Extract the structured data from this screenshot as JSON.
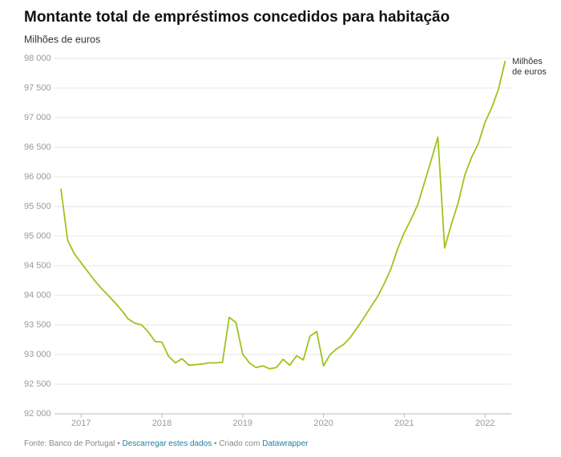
{
  "chart_data": {
    "type": "line",
    "title": "Montante total de empréstimos concedidos para habitação",
    "y_axis_label": "Milhões de euros",
    "categories": [
      null,
      null,
      null,
      "2017",
      null,
      null,
      null,
      null,
      null,
      null,
      null,
      null,
      null,
      null,
      null,
      "2018",
      null,
      null,
      null,
      null,
      null,
      null,
      null,
      null,
      null,
      null,
      null,
      "2019",
      null,
      null,
      null,
      null,
      null,
      null,
      null,
      null,
      null,
      null,
      null,
      "2020",
      null,
      null,
      null,
      null,
      null,
      null,
      null,
      null,
      null,
      null,
      null,
      "2021",
      null,
      null,
      null,
      null,
      null,
      null,
      null,
      null,
      null,
      null,
      null,
      "2022",
      null,
      null,
      null
    ],
    "series": [
      {
        "name": "Milhões de euros",
        "color": "#9dc41a",
        "values": [
          95800,
          94930,
          94700,
          94550,
          94400,
          94250,
          94120,
          94000,
          93880,
          93750,
          93600,
          93530,
          93500,
          93380,
          93220,
          93210,
          92970,
          92860,
          92930,
          92820,
          92830,
          92840,
          92860,
          92860,
          92870,
          93630,
          93540,
          93010,
          92860,
          92780,
          92810,
          92760,
          92780,
          92920,
          92820,
          92980,
          92910,
          93310,
          93390,
          92810,
          93000,
          93100,
          93170,
          93290,
          93450,
          93620,
          93800,
          93970,
          94190,
          94440,
          94780,
          95060,
          95280,
          95530,
          95900,
          96280,
          96670,
          94800,
          95200,
          95560,
          96030,
          96330,
          96560,
          96920,
          97170,
          97480,
          97960
        ]
      }
    ],
    "ylim": [
      92000,
      98000
    ],
    "yticks": [
      {
        "value": 92000,
        "label": "92 000"
      },
      {
        "value": 92500,
        "label": "92 500"
      },
      {
        "value": 93000,
        "label": "93 000"
      },
      {
        "value": 93500,
        "label": "93 500"
      },
      {
        "value": 94000,
        "label": "94 000"
      },
      {
        "value": 94500,
        "label": "94 500"
      },
      {
        "value": 95000,
        "label": "95 000"
      },
      {
        "value": 95500,
        "label": "95 500"
      },
      {
        "value": 96000,
        "label": "96 000"
      },
      {
        "value": 96500,
        "label": "96 500"
      },
      {
        "value": 97000,
        "label": "97 000"
      },
      {
        "value": 97500,
        "label": "97 500"
      },
      {
        "value": 98000,
        "label": "98 000"
      }
    ],
    "grid": true,
    "footer": {
      "source": "Fonte: Banco de Portugal",
      "separator": "•",
      "download": "Descarregar estes dados",
      "created": "Criado com",
      "tool": "Datawrapper"
    }
  }
}
